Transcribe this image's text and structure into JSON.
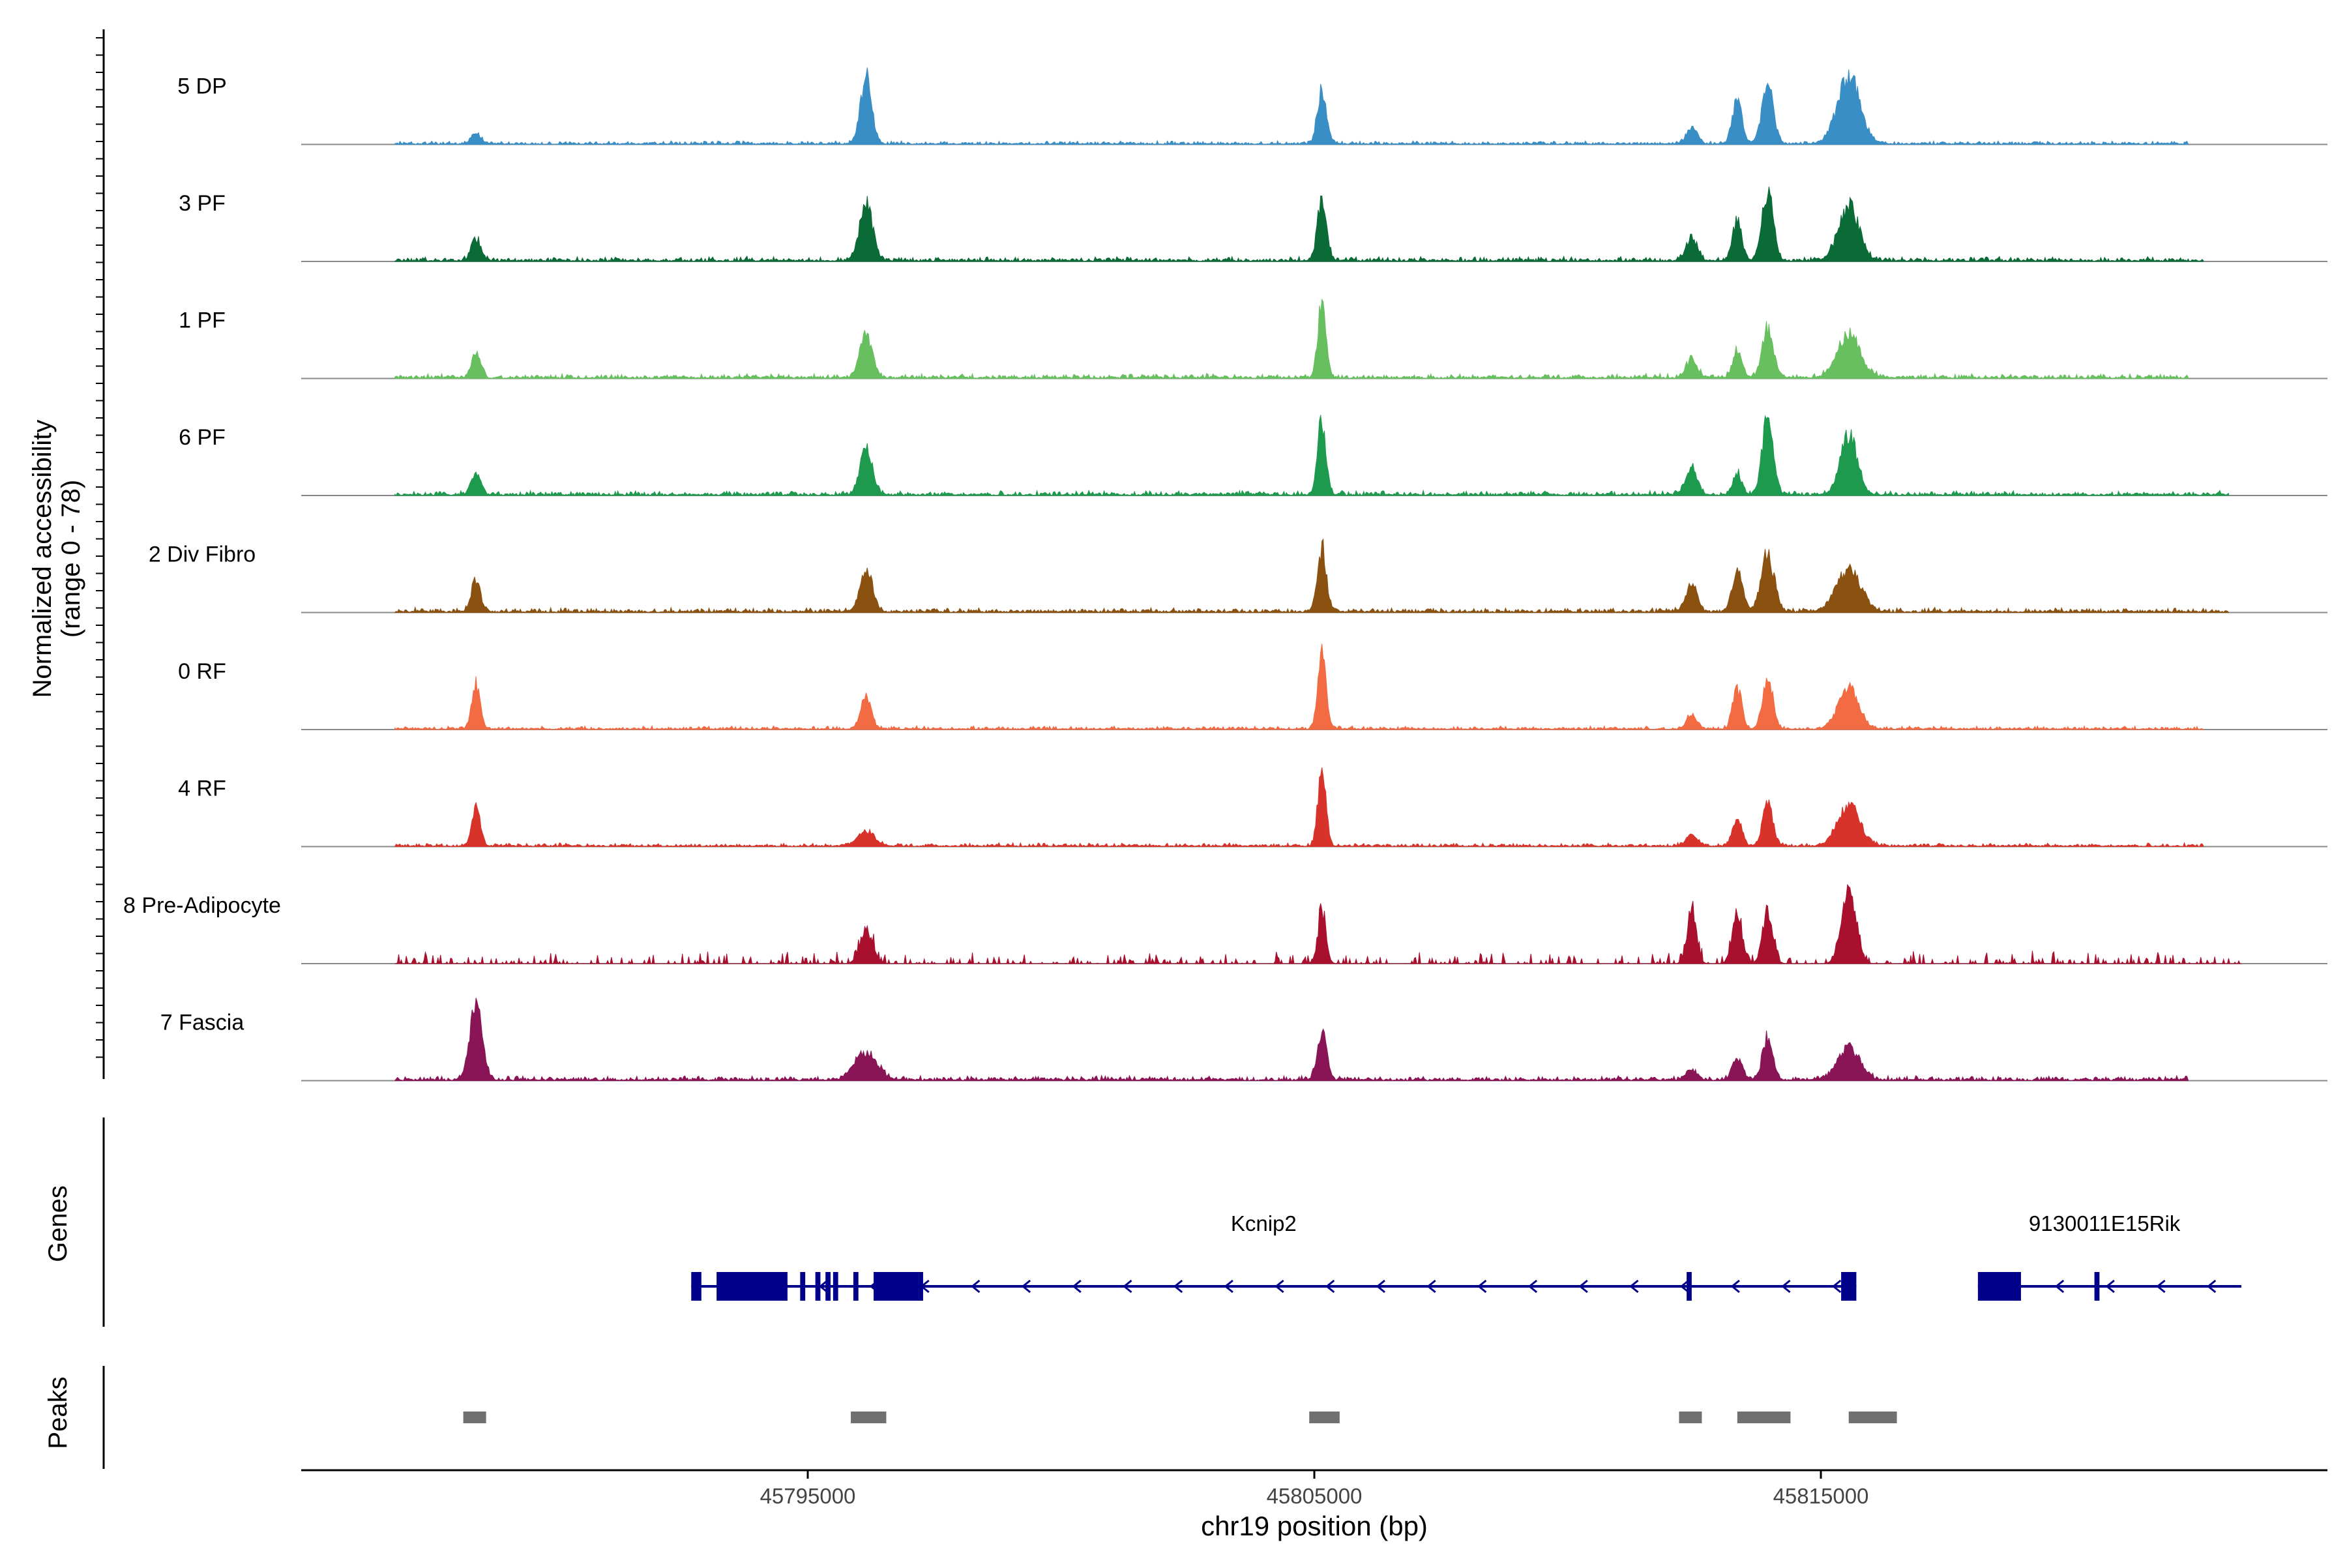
{
  "chart_data": {
    "type": "area",
    "title": "",
    "ylabel_line1": "Normalized accessibility",
    "ylabel_line2": "(range 0 - 78)",
    "ylim": [
      0,
      78
    ],
    "xlabel": "chr19 position (bp)",
    "xlim": [
      45785000,
      45825000
    ],
    "xticks": [
      {
        "value": 45795000,
        "label": "45795000"
      },
      {
        "value": 45805000,
        "label": "45805000"
      },
      {
        "value": 45815000,
        "label": "45815000"
      }
    ],
    "peak_positions": [
      45788450,
      45796150,
      45805150,
      45812450,
      45813950,
      45815550
    ],
    "tracks": [
      {
        "name": "5 DP",
        "color": "#3a8ec6",
        "noise": 3,
        "density": 1,
        "peaks": [
          [
            45788450,
            12,
            90
          ],
          [
            45796150,
            78,
            110
          ],
          [
            45805150,
            60,
            90
          ],
          [
            45812450,
            18,
            110
          ],
          [
            45813350,
            54,
            90
          ],
          [
            45813950,
            70,
            110
          ],
          [
            45815550,
            78,
            220
          ]
        ],
        "extent": [
          45786850,
          45822250
        ]
      },
      {
        "name": "3 PF",
        "color": "#0b6b36",
        "noise": 4,
        "density": 1,
        "peaks": [
          [
            45788450,
            24,
            90
          ],
          [
            45796150,
            62,
            130
          ],
          [
            45805150,
            72,
            90
          ],
          [
            45812450,
            24,
            110
          ],
          [
            45813350,
            46,
            90
          ],
          [
            45813950,
            78,
            110
          ],
          [
            45815550,
            62,
            200
          ]
        ],
        "extent": [
          45786850,
          45822550
        ]
      },
      {
        "name": "1 PF",
        "color": "#67bf5f",
        "noise": 4,
        "density": 1,
        "peaks": [
          [
            45788450,
            28,
            90
          ],
          [
            45796150,
            52,
            120
          ],
          [
            45805150,
            86,
            80
          ],
          [
            45812450,
            20,
            110
          ],
          [
            45813350,
            30,
            90
          ],
          [
            45813950,
            56,
            110
          ],
          [
            45815550,
            52,
            220
          ]
        ],
        "extent": [
          45786850,
          45822250
        ]
      },
      {
        "name": "6 PF",
        "color": "#1d9a4d",
        "noise": 4,
        "density": 1,
        "peaks": [
          [
            45788450,
            26,
            90
          ],
          [
            45796150,
            50,
            120
          ],
          [
            45805150,
            86,
            80
          ],
          [
            45812450,
            32,
            110
          ],
          [
            45813350,
            24,
            90
          ],
          [
            45813950,
            86,
            110
          ],
          [
            45815550,
            66,
            170
          ]
        ],
        "extent": [
          45786850,
          45823050
        ]
      },
      {
        "name": "2 Div Fibro",
        "color": "#8a5110",
        "noise": 4,
        "density": 1,
        "peaks": [
          [
            45788450,
            36,
            90
          ],
          [
            45796150,
            52,
            120
          ],
          [
            45805150,
            72,
            90
          ],
          [
            45812450,
            30,
            110
          ],
          [
            45813350,
            46,
            100
          ],
          [
            45813950,
            64,
            130
          ],
          [
            45815550,
            48,
            240
          ]
        ],
        "extent": [
          45786850,
          45823050
        ]
      },
      {
        "name": "0 RF",
        "color": "#f26b43",
        "noise": 3,
        "density": 1,
        "peaks": [
          [
            45788450,
            52,
            80
          ],
          [
            45796150,
            36,
            100
          ],
          [
            45805150,
            86,
            80
          ],
          [
            45812450,
            16,
            100
          ],
          [
            45813350,
            46,
            90
          ],
          [
            45813950,
            60,
            100
          ],
          [
            45815550,
            46,
            200
          ]
        ],
        "extent": [
          45786850,
          45822550
        ]
      },
      {
        "name": "4 RF",
        "color": "#d8332a",
        "noise": 3,
        "density": 1,
        "peaks": [
          [
            45788450,
            46,
            80
          ],
          [
            45796150,
            18,
            160
          ],
          [
            45805150,
            86,
            80
          ],
          [
            45812450,
            12,
            110
          ],
          [
            45813350,
            32,
            90
          ],
          [
            45813950,
            50,
            100
          ],
          [
            45815550,
            46,
            220
          ]
        ],
        "extent": [
          45786850,
          45822550
        ]
      },
      {
        "name": "8 Pre-Adipocyte",
        "color": "#a8102e",
        "noise": 10,
        "density": 0.3,
        "peaks": [
          [
            45796150,
            40,
            120
          ],
          [
            45805150,
            58,
            80
          ],
          [
            45812450,
            62,
            90
          ],
          [
            45813350,
            56,
            100
          ],
          [
            45813950,
            60,
            100
          ],
          [
            45815550,
            86,
            140
          ]
        ],
        "extent": [
          45786850,
          45823300
        ]
      },
      {
        "name": "7 Fascia",
        "color": "#8a1556",
        "noise": 4,
        "density": 1,
        "peaks": [
          [
            45788450,
            86,
            120
          ],
          [
            45796150,
            32,
            220
          ],
          [
            45805150,
            58,
            90
          ],
          [
            45812450,
            12,
            110
          ],
          [
            45813350,
            26,
            100
          ],
          [
            45813950,
            50,
            100
          ],
          [
            45815550,
            36,
            220
          ]
        ],
        "extent": [
          45786850,
          45822250
        ]
      }
    ],
    "genes_label": "Genes",
    "peaks_label": "Peaks",
    "genes": [
      {
        "name": "Kcnip2",
        "label_x": 45804000,
        "start": 45792700,
        "end": 45815700,
        "exons": [
          [
            45792700,
            45792900
          ],
          [
            45793200,
            45794600
          ],
          [
            45794850,
            45794950
          ],
          [
            45795150,
            45795250
          ],
          [
            45795350,
            45795450
          ],
          [
            45795500,
            45795600
          ],
          [
            45795900,
            45796000
          ],
          [
            45797200,
            45797200.1
          ],
          [
            45796300,
            45797200
          ],
          [
            45812350,
            45812450
          ],
          [
            45815400,
            45815700
          ]
        ]
      },
      {
        "name": "9130011E15Rik",
        "label_x": 45820600,
        "start": 45818100,
        "end": 45823300,
        "exons": [
          [
            45818100,
            45818950
          ],
          [
            45820400,
            45820500
          ]
        ]
      }
    ],
    "peak_regions": [
      [
        45788200,
        45788650
      ],
      [
        45795850,
        45796550
      ],
      [
        45804900,
        45805500
      ],
      [
        45812200,
        45812650
      ],
      [
        45813350,
        45814400
      ],
      [
        45815550,
        45816500
      ]
    ]
  }
}
